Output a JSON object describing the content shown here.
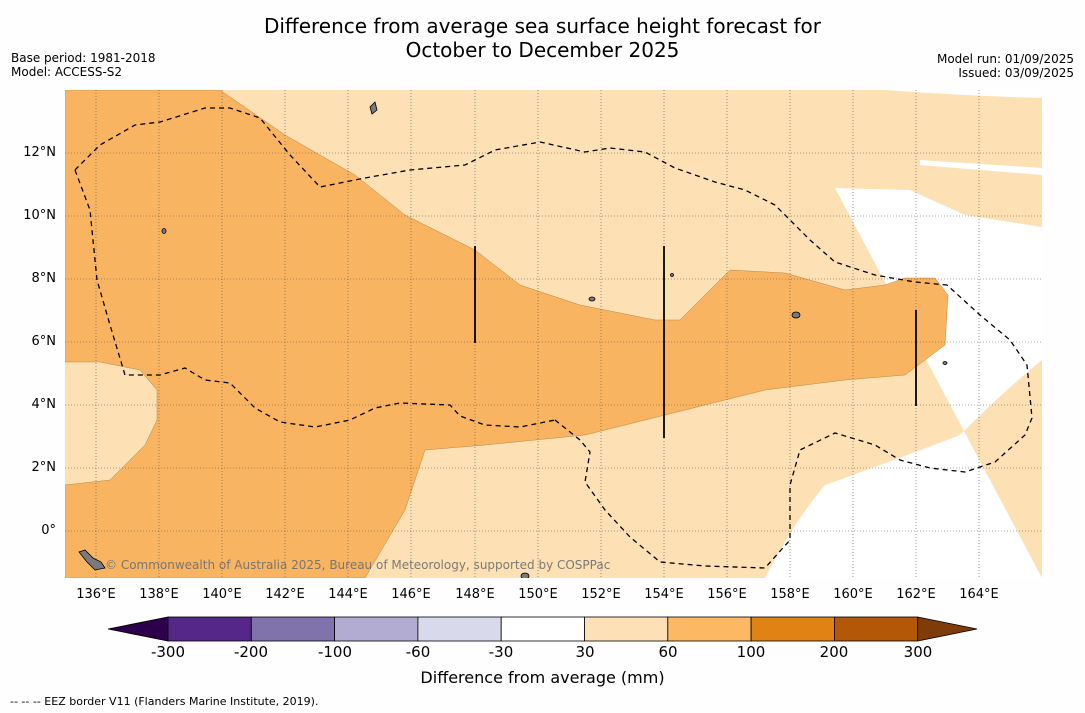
{
  "header": {
    "title_line1": "Difference from average sea surface height forecast for",
    "title_line2": "October to December 2025",
    "base_period": "Base period: 1981-2018",
    "model": "Model: ACCESS-S2",
    "model_run": "Model run: 01/09/2025",
    "issued": "Issued: 03/09/2025"
  },
  "map": {
    "longitude_labels": [
      "136°E",
      "138°E",
      "140°E",
      "142°E",
      "144°E",
      "146°E",
      "148°E",
      "150°E",
      "152°E",
      "154°E",
      "156°E",
      "158°E",
      "160°E",
      "162°E",
      "164°E"
    ],
    "latitude_labels": [
      "12°N",
      "10°N",
      "8°N",
      "6°N",
      "4°N",
      "2°N",
      "0°"
    ],
    "credit": "© Commonwealth of Australia 2025, Bureau of Meteorology, supported by COSPPac",
    "colors": {
      "30_to_60": "#fde0b3",
      "60_to_100": "#f9b461",
      "no_change": "#ffffff",
      "eez_border": "#000000"
    }
  },
  "colorbar": {
    "title": "Difference from average (mm)",
    "tick_labels": [
      "-300",
      "-200",
      "-100",
      "-60",
      "-30",
      "30",
      "60",
      "100",
      "200",
      "300"
    ],
    "bin_colors": [
      "#542789",
      "#8073ac",
      "#b2abd2",
      "#d8daeb",
      "#ffffff",
      "#fee0b6",
      "#fdb863",
      "#e08214",
      "#b35806"
    ],
    "under_color": "#2d004b",
    "over_color": "#7f3b08"
  },
  "footer": {
    "legend_text": "-- -- -- EEZ border V11 (Flanders Marine Institute, 2019)."
  }
}
